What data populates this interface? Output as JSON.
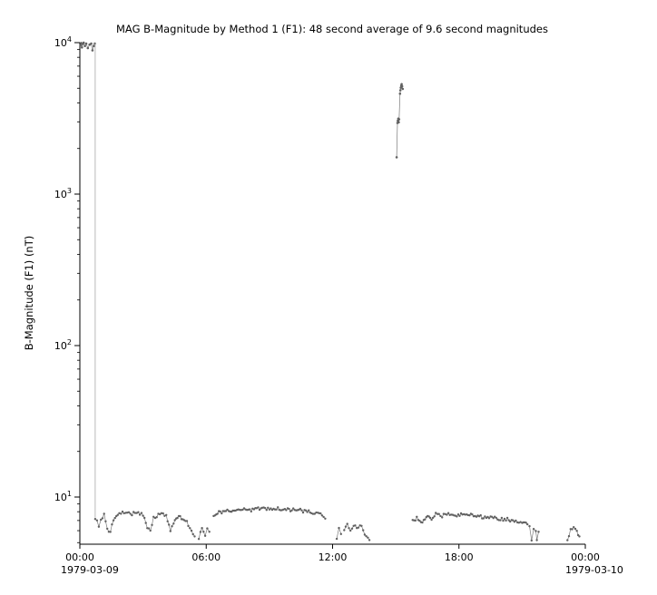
{
  "page": {
    "background": "#ffffff"
  },
  "chart_data": {
    "type": "scatter",
    "title": "MAG  B-Magnitude by Method 1 (F1): 48 second average of 9.6 second magnitudes",
    "xlabel": "",
    "ylabel": "B-Magnitude (F1) (nT)",
    "y_scale": "log",
    "ylim": [
      4.9,
      10000
    ],
    "xlim_hours": [
      0,
      24
    ],
    "y_ticks": [
      10,
      100,
      1000,
      10000
    ],
    "x_ticks": [
      {
        "t": 0,
        "label": "00:00"
      },
      {
        "t": 6,
        "label": "06:00"
      },
      {
        "t": 12,
        "label": "12:00"
      },
      {
        "t": 18,
        "label": "18:00"
      },
      {
        "t": 24,
        "label": "00:00"
      }
    ],
    "x_date_left": "1979-03-09",
    "x_date_right": "1979-03-10",
    "grid": false,
    "legend": "none",
    "point_color": "#616161",
    "line_color": "#7a7a7a",
    "series": [
      {
        "name": "start-high-cluster",
        "interp": false,
        "connect": true,
        "r": 1.3,
        "points": [
          [
            0.02,
            9600
          ],
          [
            0.06,
            9950
          ],
          [
            0.1,
            9300
          ],
          [
            0.14,
            9800
          ],
          [
            0.18,
            10050
          ],
          [
            0.24,
            9500
          ],
          [
            0.3,
            9850
          ],
          [
            0.38,
            9200
          ],
          [
            0.46,
            9700
          ],
          [
            0.54,
            9850
          ],
          [
            0.6,
            8900
          ],
          [
            0.66,
            9500
          ],
          [
            0.71,
            9850
          ]
        ]
      },
      {
        "name": "dropout-line",
        "interp": false,
        "connect": true,
        "dots": false,
        "color": "#b0b0b0",
        "lw": 0.9,
        "points": [
          [
            0.73,
            9900
          ],
          [
            0.73,
            7.3
          ]
        ]
      },
      {
        "name": "band-morning",
        "interp": true,
        "points": [
          [
            0.73,
            7.3
          ],
          [
            0.9,
            6.4
          ],
          [
            1.0,
            7.2
          ],
          [
            1.15,
            7.6
          ],
          [
            1.3,
            6.1
          ],
          [
            1.45,
            5.9
          ],
          [
            1.6,
            7.1
          ],
          [
            1.8,
            7.8
          ],
          [
            2.1,
            8.0
          ],
          [
            2.4,
            7.7
          ],
          [
            2.7,
            8.0
          ],
          [
            3.0,
            7.6
          ],
          [
            3.2,
            6.2
          ],
          [
            3.35,
            6.0
          ],
          [
            3.5,
            7.3
          ],
          [
            3.8,
            7.8
          ],
          [
            4.1,
            7.6
          ],
          [
            4.3,
            6.0
          ],
          [
            4.45,
            6.8
          ],
          [
            4.7,
            7.4
          ],
          [
            4.95,
            7.2
          ],
          [
            5.15,
            6.6
          ],
          [
            5.3,
            6.0
          ],
          [
            5.45,
            5.5
          ]
        ]
      },
      {
        "name": "cluster-pre-0600",
        "interp": true,
        "points": [
          [
            5.65,
            5.4
          ],
          [
            5.8,
            6.2
          ],
          [
            5.95,
            5.6
          ],
          [
            6.05,
            6.3
          ],
          [
            6.15,
            5.9
          ]
        ]
      },
      {
        "name": "band-midday-arc",
        "interp": true,
        "points": [
          [
            6.35,
            7.4
          ],
          [
            6.6,
            7.9
          ],
          [
            7.0,
            8.2
          ],
          [
            7.4,
            8.0
          ],
          [
            7.8,
            8.4
          ],
          [
            8.2,
            8.2
          ],
          [
            8.6,
            8.5
          ],
          [
            9.0,
            8.3
          ],
          [
            9.4,
            8.4
          ],
          [
            9.8,
            8.2
          ],
          [
            10.2,
            8.3
          ],
          [
            10.6,
            8.1
          ],
          [
            11.0,
            7.9
          ],
          [
            11.3,
            7.8
          ],
          [
            11.5,
            7.5
          ],
          [
            11.65,
            7.2
          ]
        ]
      },
      {
        "name": "cluster-noon-1",
        "interp": true,
        "points": [
          [
            12.2,
            5.3
          ],
          [
            12.3,
            6.1
          ],
          [
            12.4,
            5.7
          ]
        ]
      },
      {
        "name": "cluster-noon-2",
        "interp": true,
        "points": [
          [
            12.55,
            6.2
          ],
          [
            12.7,
            6.6
          ],
          [
            12.85,
            6.0
          ],
          [
            13.0,
            6.5
          ],
          [
            13.15,
            6.2
          ],
          [
            13.3,
            6.6
          ],
          [
            13.45,
            6.0
          ],
          [
            13.6,
            5.5
          ],
          [
            13.75,
            5.2
          ]
        ]
      },
      {
        "name": "high-spike-1500",
        "interp": false,
        "connect": true,
        "r": 1.3,
        "points": [
          [
            15.04,
            1750
          ],
          [
            15.08,
            2950
          ],
          [
            15.1,
            3050
          ],
          [
            15.12,
            3150
          ],
          [
            15.14,
            2980
          ],
          [
            15.16,
            3120
          ],
          [
            15.2,
            4600
          ],
          [
            15.22,
            4850
          ],
          [
            15.24,
            5050
          ],
          [
            15.26,
            5200
          ],
          [
            15.28,
            5320
          ],
          [
            15.3,
            5150
          ],
          [
            15.33,
            4950
          ]
        ]
      },
      {
        "name": "band-evening",
        "interp": true,
        "points": [
          [
            15.8,
            6.9
          ],
          [
            16.0,
            7.3
          ],
          [
            16.2,
            6.7
          ],
          [
            16.45,
            7.5
          ],
          [
            16.7,
            7.2
          ],
          [
            16.9,
            7.7
          ],
          [
            17.2,
            7.5
          ],
          [
            17.5,
            7.8
          ],
          [
            17.9,
            7.6
          ],
          [
            18.3,
            7.7
          ],
          [
            18.7,
            7.5
          ],
          [
            19.1,
            7.4
          ],
          [
            19.5,
            7.3
          ],
          [
            19.9,
            7.2
          ],
          [
            20.3,
            7.1
          ],
          [
            20.7,
            7.0
          ],
          [
            21.0,
            6.8
          ],
          [
            21.25,
            6.6
          ]
        ]
      },
      {
        "name": "dip-2130",
        "interp": true,
        "points": [
          [
            21.35,
            6.4
          ],
          [
            21.45,
            5.1
          ],
          [
            21.55,
            6.3
          ],
          [
            21.65,
            6.1
          ],
          [
            21.7,
            5.3
          ],
          [
            21.78,
            5.9
          ]
        ]
      },
      {
        "name": "cluster-late",
        "interp": true,
        "points": [
          [
            23.15,
            5.3
          ],
          [
            23.3,
            6.0
          ],
          [
            23.45,
            6.3
          ],
          [
            23.6,
            6.0
          ],
          [
            23.72,
            5.5
          ]
        ]
      }
    ]
  }
}
